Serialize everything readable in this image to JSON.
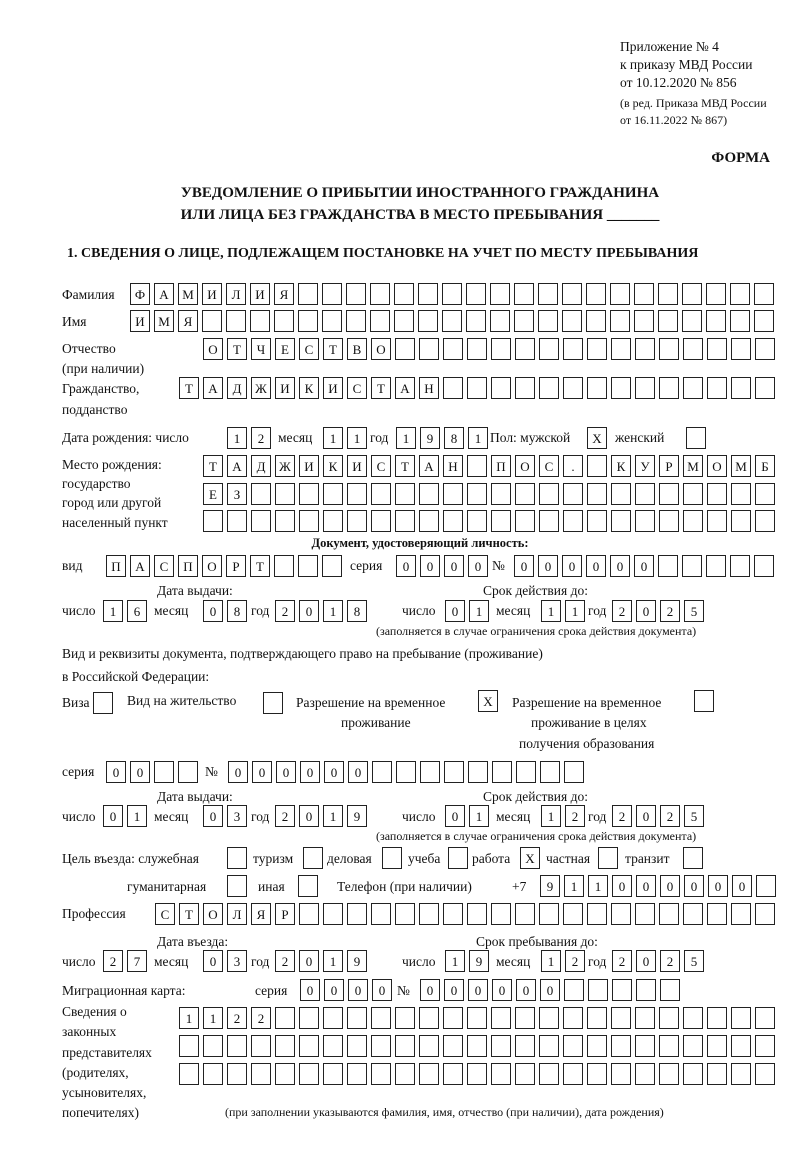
{
  "header": {
    "annex": "Приложение № 4",
    "order": "к приказу МВД России",
    "date": "от 10.12.2020 № 856",
    "rev1": "(в ред. Приказа МВД России",
    "rev2": "от 16.11.2022 № 867)",
    "form": "ФОРМА",
    "title1": "УВЕДОМЛЕНИЕ О ПРИБЫТИИ ИНОСТРАННОГО ГРАЖДАНИНА",
    "title2": "ИЛИ ЛИЦА БЕЗ ГРАЖДАНСТВА В МЕСТО ПРЕБЫВАНИЯ _______",
    "section": "1. СВЕДЕНИЯ О ЛИЦЕ, ПОДЛЕЖАЩЕМ ПОСТАНОВКЕ НА УЧЕТ ПО МЕСТУ ПРЕБЫВАНИЯ"
  },
  "labels": {
    "surname": "Фамилия",
    "name": "Имя",
    "patronymic": "Отчество",
    "patronymic2": "(при наличии)",
    "citizenship": "Гражданство,",
    "citizenship2": "подданство",
    "birth_date": "Дата рождения:  число",
    "month": "месяц",
    "year": "год",
    "day": "число",
    "sex_male": "Пол: мужской",
    "sex_female": "женский",
    "birth_place": "Место рождения:",
    "bp2": "государство",
    "bp3": "город или другой",
    "bp4": "населенный пункт",
    "id_doc": "Документ, удостоверяющий личность:",
    "kind": "вид",
    "series": "серия",
    "number": "№",
    "issue_date": "Дата выдачи:",
    "valid_until": "Срок действия до:",
    "valid_note": "(заполняется в случае ограничения срока действия документа)",
    "right_doc1": "Вид и реквизиты документа, подтверждающего право на пребывание (проживание)",
    "right_doc2": "в Российской Федерации:",
    "visa": "Виза",
    "residence": "Вид на жительство",
    "trp1": "Разрешение на временное",
    "trp2": "проживание",
    "trpe1": "Разрешение на временное",
    "trpe2": "проживание в целях",
    "trpe3": "получения образования",
    "purpose": "Цель въезда: служебная",
    "tourism": "туризм",
    "business": "деловая",
    "study": "учеба",
    "work": "работа",
    "private": "частная",
    "transit": "транзит",
    "humanitarian": "гуманитарная",
    "other": "иная",
    "phone": "Телефон (при наличии)",
    "phone_prefix": "+7",
    "profession": "Профессия",
    "entry_date": "Дата въезда:",
    "stay_until": "Срок пребывания до:",
    "migration_card": "Миграционная карта:",
    "reps1": "Сведения о",
    "reps2": "законных",
    "reps3": "представителях",
    "reps4": "(родителях,",
    "reps5": "усыновителях,",
    "reps6": "попечителях)",
    "reps_note": "(при заполнении указываются фамилия, имя, отчество (при наличии), дата рождения)"
  },
  "values": {
    "surname": "ФАМИЛИЯ",
    "name": "ИМЯ",
    "patronymic": "ОТЧЕСТВО",
    "citizenship": "ТАДЖИКИСТАН",
    "birth_day": "12",
    "birth_month": "11",
    "birth_year": "1981",
    "sex_male": "X",
    "sex_female": "",
    "birth_place1": "ТАДЖИКИСТАН ПОС. КУРМОМБ",
    "birth_place2": "ЕЗ",
    "birth_place3": "",
    "id_kind": "ПАСПОРТ",
    "id_series": "0000",
    "id_number": "000000",
    "id_issue_day": "16",
    "id_issue_month": "08",
    "id_issue_year": "2018",
    "id_valid_day": "01",
    "id_valid_month": "11",
    "id_valid_year": "2025",
    "visa": "",
    "residence": "",
    "trp": "X",
    "trpe": "",
    "rd_series": "00",
    "rd_number": "000000",
    "rd_issue_day": "01",
    "rd_issue_month": "03",
    "rd_issue_year": "2019",
    "rd_valid_day": "01",
    "rd_valid_month": "12",
    "rd_valid_year": "2025",
    "p_official": "",
    "p_tourism": "",
    "p_business": "",
    "p_study": "",
    "p_work": "X",
    "p_private": "",
    "p_transit": "",
    "p_humanitarian": "",
    "p_other": "",
    "phone": "911000000",
    "profession": "СТОЛЯР",
    "entry_day": "27",
    "entry_month": "03",
    "entry_year": "2019",
    "stay_day": "19",
    "stay_month": "12",
    "stay_year": "2025",
    "mc_series": "0000",
    "mc_number": "000000",
    "reps1": "1122",
    "reps2": "",
    "reps3": ""
  }
}
